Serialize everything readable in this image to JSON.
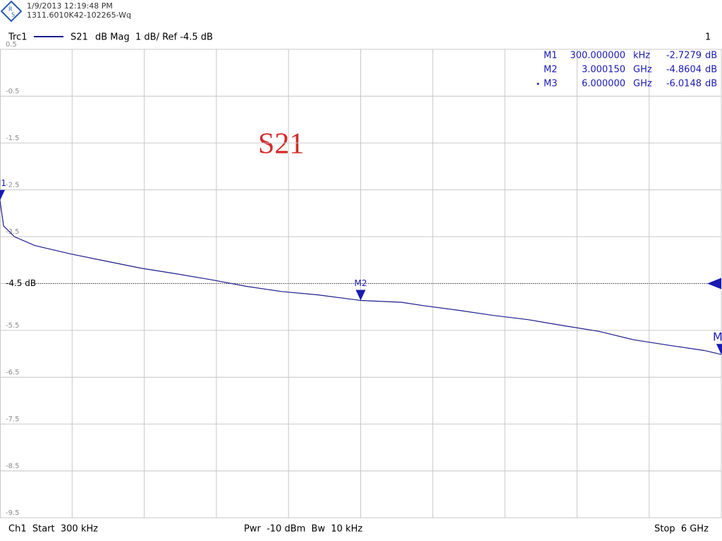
{
  "header": {
    "date": "1/9/2013 12:19:48 PM",
    "device": "1311.6010K42-102265-Wq"
  },
  "chart_data": {
    "type": "line",
    "trace_label": "Trc1",
    "trace_info": "dB Mag  1 dB/ Ref -4.5 dB",
    "channel_number": "1",
    "annotation": "S21",
    "xlim": [
      0.0003,
      6
    ],
    "ylim": [
      -9.5,
      0.5
    ],
    "yticks": [
      0.5,
      -0.5,
      -1.5,
      -2.5,
      -3.5,
      {
        "value": -4.5,
        "label": "-4.5 dB"
      },
      -5.5,
      -6.5,
      -7.5,
      -8.5,
      -9.5
    ],
    "reference": -4.5,
    "grid": true,
    "x_divisions": 10,
    "series": [
      {
        "name": "S21",
        "color": "#1c1c8c",
        "x": [
          0.0003,
          0.03,
          0.12,
          0.29,
          0.59,
          0.88,
          1.17,
          1.46,
          1.76,
          2.05,
          2.34,
          2.64,
          3.00015,
          3.34,
          3.52,
          3.81,
          4.1,
          4.39,
          4.69,
          4.98,
          5.27,
          5.57,
          5.86,
          6.0
        ],
        "values": [
          -2.7279,
          -3.27,
          -3.5,
          -3.69,
          -3.87,
          -4.02,
          -4.17,
          -4.29,
          -4.42,
          -4.56,
          -4.67,
          -4.74,
          -4.8604,
          -4.9,
          -4.97,
          -5.07,
          -5.18,
          -5.27,
          -5.4,
          -5.52,
          -5.7,
          -5.82,
          -5.93,
          -6.0148
        ]
      }
    ],
    "markers": [
      {
        "name": "M1",
        "x": 0.0003,
        "value": -2.7279,
        "stimulus": "300.000000",
        "unit": "kHz",
        "response": "-2.7279",
        "response_unit": "dB"
      },
      {
        "name": "M2",
        "x": 3.00015,
        "value": -4.8604,
        "stimulus": "3.000150",
        "unit": "GHz",
        "response": "-4.8604",
        "response_unit": "dB"
      },
      {
        "name": "M3",
        "x": 6.0,
        "value": -6.0148,
        "stimulus": "6.000000",
        "unit": "GHz",
        "response": "-6.0148",
        "response_unit": "dB"
      }
    ],
    "marker_color": "#1a1ab4"
  },
  "footer": {
    "start": "Ch1  Start  300 kHz",
    "power": "Pwr  -10 dBm  Bw  10 kHz",
    "stop": "Stop  6 GHz"
  }
}
